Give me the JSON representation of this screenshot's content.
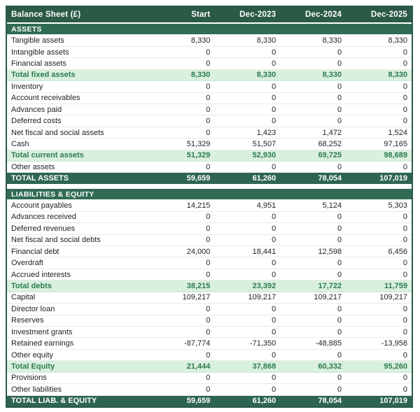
{
  "table": {
    "title": "Balance Sheet (£)",
    "columns": [
      "Start",
      "Dec-2023",
      "Dec-2024",
      "Dec-2025"
    ],
    "colors": {
      "header_green": "#2b5a47",
      "section_green": "#306b53",
      "total_green": "#2e6550",
      "subtotal_bg": "#d9f0de",
      "subtotal_text": "#2d7a4e"
    },
    "sections": [
      {
        "header": "ASSETS",
        "rows": [
          {
            "label": "Tangible assets",
            "type": "item",
            "values": [
              "8,330",
              "8,330",
              "8,330",
              "8,330"
            ]
          },
          {
            "label": "Intangible assets",
            "type": "item",
            "values": [
              "0",
              "0",
              "0",
              "0"
            ]
          },
          {
            "label": "Financial assets",
            "type": "item",
            "values": [
              "0",
              "0",
              "0",
              "0"
            ]
          },
          {
            "label": "Total fixed assets",
            "type": "subtotal",
            "values": [
              "8,330",
              "8,330",
              "8,330",
              "8,330"
            ]
          },
          {
            "label": "Inventory",
            "type": "item",
            "values": [
              "0",
              "0",
              "0",
              "0"
            ]
          },
          {
            "label": "Account receivables",
            "type": "item",
            "values": [
              "0",
              "0",
              "0",
              "0"
            ]
          },
          {
            "label": "Advances paid",
            "type": "item",
            "values": [
              "0",
              "0",
              "0",
              "0"
            ]
          },
          {
            "label": "Deferred costs",
            "type": "item",
            "values": [
              "0",
              "0",
              "0",
              "0"
            ]
          },
          {
            "label": "Net fiscal and social assets",
            "type": "item",
            "values": [
              "0",
              "1,423",
              "1,472",
              "1,524"
            ]
          },
          {
            "label": "Cash",
            "type": "item",
            "values": [
              "51,329",
              "51,507",
              "68,252",
              "97,165"
            ]
          },
          {
            "label": "Total current assets",
            "type": "subtotal",
            "values": [
              "51,329",
              "52,930",
              "69,725",
              "98,689"
            ]
          },
          {
            "label": "Other assets",
            "type": "item",
            "values": [
              "0",
              "0",
              "0",
              "0"
            ]
          },
          {
            "label": "TOTAL ASSETS",
            "type": "grandtotal",
            "values": [
              "59,659",
              "61,260",
              "78,054",
              "107,019"
            ]
          }
        ]
      },
      {
        "header": "LIABILITIES & EQUITY",
        "rows": [
          {
            "label": "Account payables",
            "type": "item",
            "values": [
              "14,215",
              "4,951",
              "5,124",
              "5,303"
            ]
          },
          {
            "label": "Advances received",
            "type": "item",
            "values": [
              "0",
              "0",
              "0",
              "0"
            ]
          },
          {
            "label": "Deferred revenues",
            "type": "item",
            "values": [
              "0",
              "0",
              "0",
              "0"
            ]
          },
          {
            "label": "Net fiscal and social debts",
            "type": "item",
            "values": [
              "0",
              "0",
              "0",
              "0"
            ]
          },
          {
            "label": "Financial debt",
            "type": "item",
            "values": [
              "24,000",
              "18,441",
              "12,598",
              "6,456"
            ]
          },
          {
            "label": "Overdraft",
            "type": "item",
            "values": [
              "0",
              "0",
              "0",
              "0"
            ]
          },
          {
            "label": "Accrued interests",
            "type": "item",
            "values": [
              "0",
              "0",
              "0",
              "0"
            ]
          },
          {
            "label": "Total debts",
            "type": "subtotal",
            "values": [
              "38,215",
              "23,392",
              "17,722",
              "11,759"
            ]
          },
          {
            "label": "Capital",
            "type": "item",
            "values": [
              "109,217",
              "109,217",
              "109,217",
              "109,217"
            ]
          },
          {
            "label": "Director loan",
            "type": "item",
            "values": [
              "0",
              "0",
              "0",
              "0"
            ]
          },
          {
            "label": "Reserves",
            "type": "item",
            "values": [
              "0",
              "0",
              "0",
              "0"
            ]
          },
          {
            "label": "Investment grants",
            "type": "item",
            "values": [
              "0",
              "0",
              "0",
              "0"
            ]
          },
          {
            "label": "Retained earnings",
            "type": "item",
            "values": [
              "-87,774",
              "-71,350",
              "-48,885",
              "-13,958"
            ]
          },
          {
            "label": "Other equity",
            "type": "item",
            "values": [
              "0",
              "0",
              "0",
              "0"
            ]
          },
          {
            "label": "Total Equity",
            "type": "subtotal",
            "values": [
              "21,444",
              "37,868",
              "60,332",
              "95,260"
            ]
          },
          {
            "label": "Provisions",
            "type": "item",
            "values": [
              "0",
              "0",
              "0",
              "0"
            ]
          },
          {
            "label": "Other liabilities",
            "type": "item",
            "values": [
              "0",
              "0",
              "0",
              "0"
            ]
          },
          {
            "label": "TOTAL LIAB. & EQUITY",
            "type": "grandtotal",
            "values": [
              "59,659",
              "61,260",
              "78,054",
              "107,019"
            ]
          }
        ]
      }
    ]
  }
}
